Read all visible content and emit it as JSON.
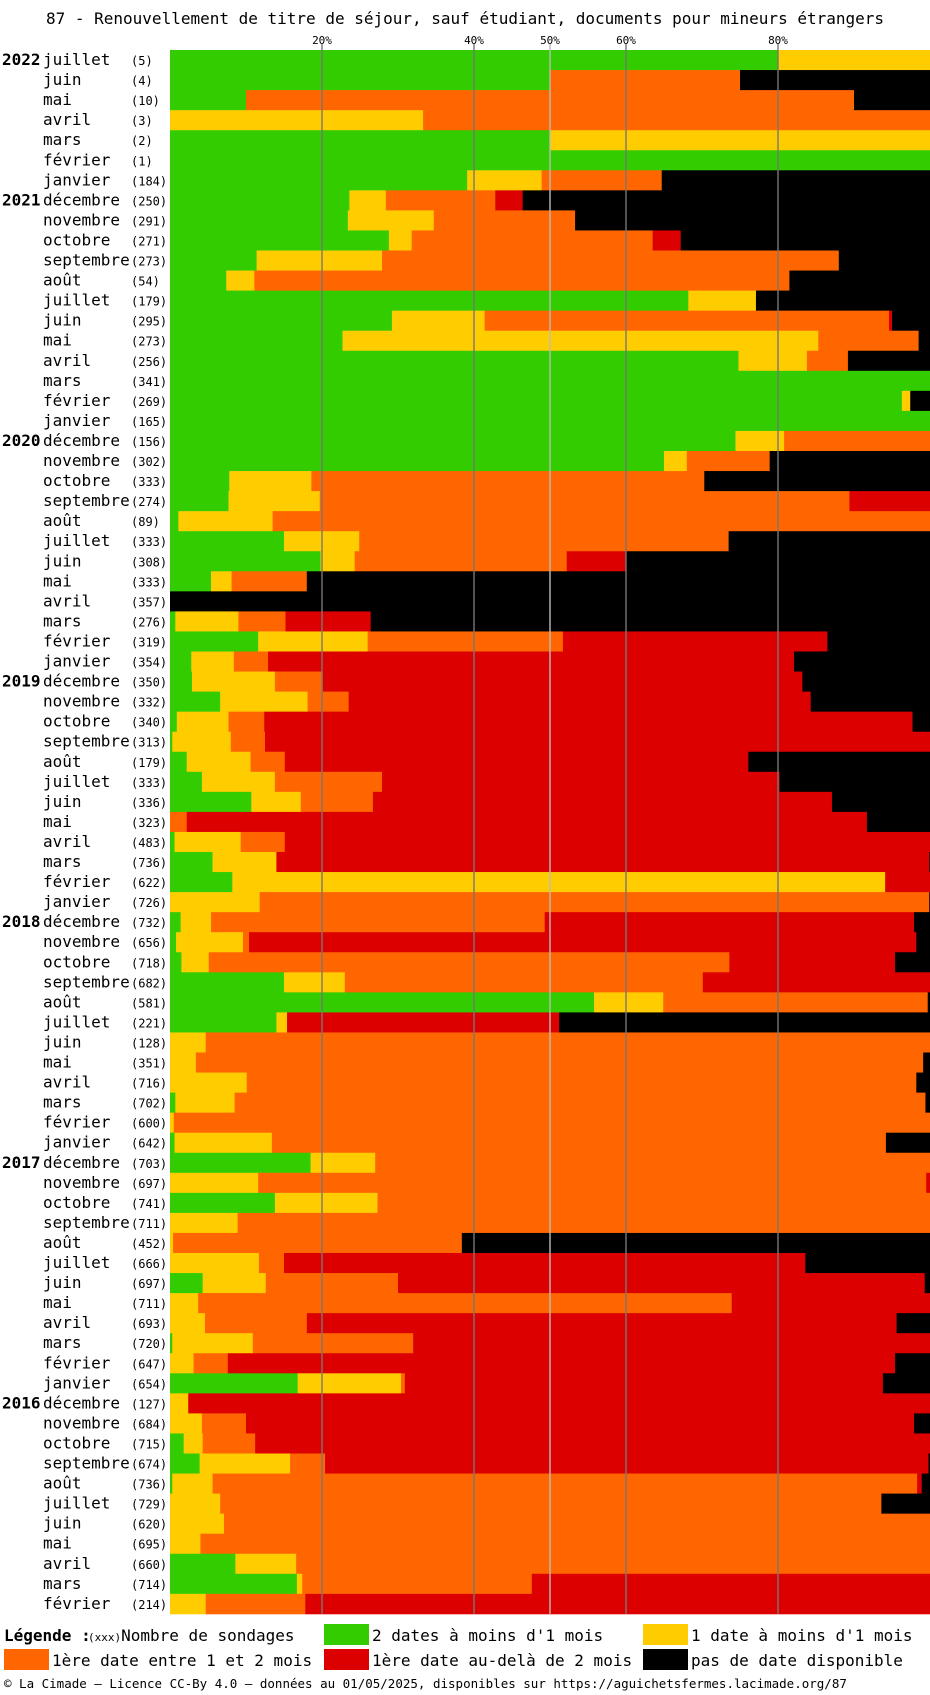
{
  "title": "87 - Renouvellement de titre de séjour, sauf étudiant, documents pour mineurs étrangers",
  "footer": "© La Cimade — Licence CC-By 4.0 — données au 01/05/2025, disponibles sur https://aguichetsfermes.lacimade.org/87",
  "legend": {
    "title": "Légende :",
    "count_marker": "(xxx)",
    "count_label": "Nombre de sondages",
    "items": [
      {
        "key": "g",
        "label": "2 dates à moins d'1 mois",
        "color": "#33cc00"
      },
      {
        "key": "y",
        "label": "1 date à moins d'1 mois",
        "color": "#ffcc00"
      },
      {
        "key": "o",
        "label": "1ère date entre 1 et 2 mois",
        "color": "#ff6600"
      },
      {
        "key": "r",
        "label": "1ère date au-delà de 2 mois",
        "color": "#dd0000"
      },
      {
        "key": "k",
        "label": "pas de date disponible",
        "color": "#000000"
      }
    ]
  },
  "chart_data": {
    "type": "bar",
    "orientation": "horizontal",
    "stacked": true,
    "unit": "percent of surveys per month",
    "xlim": [
      0,
      100
    ],
    "x_ticks": [
      20,
      40,
      50,
      60,
      80
    ],
    "x_tick_labels": [
      "20%",
      "40%",
      "50%",
      "60%",
      "80%"
    ],
    "series_order": [
      "g",
      "y",
      "o",
      "r",
      "k"
    ],
    "rows": [
      {
        "year": "2022",
        "month": "juillet",
        "count": "(5)",
        "v": [
          80,
          20,
          0,
          0,
          0
        ]
      },
      {
        "year": "",
        "month": "juin",
        "count": "(4)",
        "v": [
          50,
          0,
          25,
          0,
          25
        ]
      },
      {
        "year": "",
        "month": "mai",
        "count": "(10)",
        "v": [
          10,
          0,
          80,
          0,
          10
        ]
      },
      {
        "year": "",
        "month": "avril",
        "count": "(3)",
        "v": [
          0,
          33.3,
          66.7,
          0,
          0
        ]
      },
      {
        "year": "",
        "month": "mars",
        "count": "(2)",
        "v": [
          50,
          50,
          0,
          0,
          0
        ]
      },
      {
        "year": "",
        "month": "février",
        "count": "(1)",
        "v": [
          100,
          0,
          0,
          0,
          0
        ]
      },
      {
        "year": "",
        "month": "janvier",
        "count": "(184)",
        "v": [
          39.1,
          9.8,
          15.8,
          0,
          35.3
        ]
      },
      {
        "year": "2021",
        "month": "décembre",
        "count": "(250)",
        "v": [
          23.6,
          4.8,
          14.4,
          3.6,
          53.6
        ]
      },
      {
        "year": "",
        "month": "novembre",
        "count": "(291)",
        "v": [
          23.4,
          11.3,
          18.6,
          0,
          46.7
        ]
      },
      {
        "year": "",
        "month": "octobre",
        "count": "(271)",
        "v": [
          28.8,
          3.0,
          31.7,
          3.7,
          32.8
        ]
      },
      {
        "year": "",
        "month": "septembre",
        "count": "(273)",
        "v": [
          11.4,
          16.5,
          60.1,
          0,
          12.0
        ]
      },
      {
        "year": "",
        "month": "août",
        "count": "(54)",
        "v": [
          7.4,
          3.7,
          70.4,
          0,
          18.5
        ]
      },
      {
        "year": "",
        "month": "juillet",
        "count": "(179)",
        "v": [
          68.2,
          8.9,
          0,
          0,
          22.9
        ]
      },
      {
        "year": "",
        "month": "juin",
        "count": "(295)",
        "v": [
          29.2,
          12.2,
          53.2,
          0.4,
          5.0
        ]
      },
      {
        "year": "",
        "month": "mai",
        "count": "(273)",
        "v": [
          22.7,
          62.6,
          13.2,
          0,
          1.5
        ]
      },
      {
        "year": "",
        "month": "avril",
        "count": "(256)",
        "v": [
          74.8,
          9.0,
          5.4,
          0,
          10.8
        ]
      },
      {
        "year": "",
        "month": "mars",
        "count": "(341)",
        "v": [
          100,
          0,
          0,
          0,
          0
        ]
      },
      {
        "year": "",
        "month": "février",
        "count": "(269)",
        "v": [
          96.3,
          1.1,
          0,
          0,
          2.6
        ]
      },
      {
        "year": "",
        "month": "janvier",
        "count": "(165)",
        "v": [
          100,
          0,
          0,
          0,
          0
        ]
      },
      {
        "year": "2020",
        "month": "décembre",
        "count": "(156)",
        "v": [
          74.4,
          6.4,
          19.2,
          0,
          0
        ]
      },
      {
        "year": "",
        "month": "novembre",
        "count": "(302)",
        "v": [
          65.0,
          3.0,
          10.9,
          0,
          21.1
        ]
      },
      {
        "year": "",
        "month": "octobre",
        "count": "(333)",
        "v": [
          7.8,
          10.8,
          51.7,
          0,
          29.7
        ]
      },
      {
        "year": "",
        "month": "septembre",
        "count": "(274)",
        "v": [
          7.7,
          12.0,
          69.7,
          10.6,
          0
        ]
      },
      {
        "year": "",
        "month": "août",
        "count": "(89)",
        "v": [
          1.1,
          12.4,
          86.5,
          0,
          0
        ]
      },
      {
        "year": "",
        "month": "juillet",
        "count": "(333)",
        "v": [
          15.0,
          9.9,
          48.6,
          0,
          26.5
        ]
      },
      {
        "year": "",
        "month": "juin",
        "count": "(308)",
        "v": [
          19.8,
          4.5,
          27.9,
          7.8,
          40.0
        ]
      },
      {
        "year": "",
        "month": "mai",
        "count": "(333)",
        "v": [
          5.4,
          2.7,
          9.9,
          0,
          82.0
        ]
      },
      {
        "year": "",
        "month": "avril",
        "count": "(357)",
        "v": [
          0,
          0,
          0,
          0,
          100
        ]
      },
      {
        "year": "",
        "month": "mars",
        "count": "(276)",
        "v": [
          0.7,
          8.3,
          6.2,
          11.2,
          73.6
        ]
      },
      {
        "year": "",
        "month": "février",
        "count": "(319)",
        "v": [
          11.6,
          14.4,
          25.7,
          34.8,
          13.5
        ]
      },
      {
        "year": "",
        "month": "janvier",
        "count": "(354)",
        "v": [
          2.8,
          5.6,
          4.5,
          69.2,
          17.9
        ]
      },
      {
        "year": "2019",
        "month": "décembre",
        "count": "(350)",
        "v": [
          2.9,
          10.9,
          6.3,
          63.1,
          16.8
        ]
      },
      {
        "year": "",
        "month": "novembre",
        "count": "(332)",
        "v": [
          6.6,
          11.5,
          5.4,
          60.8,
          15.7
        ]
      },
      {
        "year": "",
        "month": "octobre",
        "count": "(340)",
        "v": [
          0.9,
          6.8,
          4.7,
          85.3,
          2.3
        ]
      },
      {
        "year": "",
        "month": "septembre",
        "count": "(313)",
        "v": [
          0.3,
          7.7,
          4.5,
          87.5,
          0
        ]
      },
      {
        "year": "",
        "month": "août",
        "count": "(179)",
        "v": [
          2.2,
          8.4,
          4.5,
          61.0,
          23.9
        ]
      },
      {
        "year": "",
        "month": "juillet",
        "count": "(333)",
        "v": [
          4.2,
          9.6,
          14.1,
          52.3,
          19.8
        ]
      },
      {
        "year": "",
        "month": "juin",
        "count": "(336)",
        "v": [
          10.7,
          6.5,
          9.5,
          60.4,
          12.9
        ]
      },
      {
        "year": "",
        "month": "mai",
        "count": "(323)",
        "v": [
          0,
          0,
          2.2,
          89.5,
          8.3
        ]
      },
      {
        "year": "",
        "month": "avril",
        "count": "(483)",
        "v": [
          0.6,
          8.7,
          5.8,
          84.9,
          0
        ]
      },
      {
        "year": "",
        "month": "mars",
        "count": "(736)",
        "v": [
          5.6,
          8.4,
          0,
          85.9,
          0.1
        ]
      },
      {
        "year": "",
        "month": "février",
        "count": "(622)",
        "v": [
          8.2,
          85.9,
          0,
          5.9,
          0
        ]
      },
      {
        "year": "",
        "month": "janvier",
        "count": "(726)",
        "v": [
          0,
          11.8,
          88.1,
          0,
          0.1
        ]
      },
      {
        "year": "2018",
        "month": "décembre",
        "count": "(732)",
        "v": [
          1.4,
          4.0,
          43.9,
          48.6,
          2.1
        ]
      },
      {
        "year": "",
        "month": "novembre",
        "count": "(656)",
        "v": [
          0.8,
          8.8,
          0.8,
          87.8,
          1.8
        ]
      },
      {
        "year": "",
        "month": "octobre",
        "count": "(718)",
        "v": [
          1.5,
          3.6,
          68.5,
          21.8,
          4.6
        ]
      },
      {
        "year": "",
        "month": "septembre",
        "count": "(682)",
        "v": [
          15.0,
          8.0,
          47.1,
          29.9,
          0
        ]
      },
      {
        "year": "",
        "month": "août",
        "count": "(581)",
        "v": [
          55.8,
          9.1,
          34.8,
          0,
          0.3
        ]
      },
      {
        "year": "",
        "month": "juillet",
        "count": "(221)",
        "v": [
          14.0,
          1.4,
          0,
          35.8,
          48.8
        ]
      },
      {
        "year": "",
        "month": "juin",
        "count": "(128)",
        "v": [
          0,
          4.7,
          95.3,
          0,
          0
        ]
      },
      {
        "year": "",
        "month": "mai",
        "count": "(351)",
        "v": [
          0,
          3.4,
          95.7,
          0,
          0.9
        ]
      },
      {
        "year": "",
        "month": "avril",
        "count": "(716)",
        "v": [
          0,
          10.1,
          88.1,
          0,
          1.8
        ]
      },
      {
        "year": "",
        "month": "mars",
        "count": "(702)",
        "v": [
          0.7,
          7.8,
          90.9,
          0,
          0.6
        ]
      },
      {
        "year": "",
        "month": "février",
        "count": "(600)",
        "v": [
          0,
          0.5,
          99.5,
          0,
          0
        ]
      },
      {
        "year": "",
        "month": "janvier",
        "count": "(642)",
        "v": [
          0.6,
          12.8,
          80.8,
          0,
          5.8
        ]
      },
      {
        "year": "2017",
        "month": "décembre",
        "count": "(703)",
        "v": [
          18.5,
          8.5,
          73.0,
          0,
          0
        ]
      },
      {
        "year": "",
        "month": "novembre",
        "count": "(697)",
        "v": [
          0,
          11.6,
          87.9,
          0.5,
          0
        ]
      },
      {
        "year": "",
        "month": "octobre",
        "count": "(741)",
        "v": [
          13.8,
          13.5,
          72.7,
          0,
          0
        ]
      },
      {
        "year": "",
        "month": "septembre",
        "count": "(711)",
        "v": [
          0,
          8.9,
          91.1,
          0,
          0
        ]
      },
      {
        "year": "",
        "month": "août",
        "count": "(452)",
        "v": [
          0,
          0.4,
          38.0,
          0,
          61.6
        ]
      },
      {
        "year": "",
        "month": "juillet",
        "count": "(666)",
        "v": [
          0,
          11.7,
          3.3,
          68.6,
          16.4
        ]
      },
      {
        "year": "",
        "month": "juin",
        "count": "(697)",
        "v": [
          4.3,
          8.3,
          17.4,
          69.3,
          0.7
        ]
      },
      {
        "year": "",
        "month": "mai",
        "count": "(711)",
        "v": [
          0,
          3.7,
          70.2,
          26.1,
          0
        ]
      },
      {
        "year": "",
        "month": "avril",
        "count": "(693)",
        "v": [
          0,
          4.6,
          13.4,
          77.6,
          4.4
        ]
      },
      {
        "year": "",
        "month": "mars",
        "count": "(720)",
        "v": [
          0.3,
          10.6,
          21.1,
          68.0,
          0
        ]
      },
      {
        "year": "",
        "month": "février",
        "count": "(647)",
        "v": [
          0,
          3.1,
          4.5,
          87.8,
          4.6
        ]
      },
      {
        "year": "",
        "month": "janvier",
        "count": "(654)",
        "v": [
          16.8,
          13.6,
          0.5,
          62.9,
          6.2
        ]
      },
      {
        "year": "2016",
        "month": "décembre",
        "count": "(127)",
        "v": [
          0,
          2.4,
          0,
          97.6,
          0
        ]
      },
      {
        "year": "",
        "month": "novembre",
        "count": "(684)",
        "v": [
          0,
          4.2,
          5.8,
          87.9,
          2.1
        ]
      },
      {
        "year": "",
        "month": "octobre",
        "count": "(715)",
        "v": [
          1.8,
          2.5,
          6.9,
          88.8,
          0
        ]
      },
      {
        "year": "",
        "month": "septembre",
        "count": "(674)",
        "v": [
          3.9,
          11.9,
          4.6,
          79.4,
          0.2
        ]
      },
      {
        "year": "",
        "month": "août",
        "count": "(736)",
        "v": [
          0.3,
          5.3,
          92.7,
          0.6,
          1.1
        ]
      },
      {
        "year": "",
        "month": "juillet",
        "count": "(729)",
        "v": [
          0,
          6.6,
          87.0,
          0,
          6.4
        ]
      },
      {
        "year": "",
        "month": "juin",
        "count": "(620)",
        "v": [
          0,
          7.1,
          92.9,
          0,
          0
        ]
      },
      {
        "year": "",
        "month": "mai",
        "count": "(695)",
        "v": [
          0,
          4.0,
          96.0,
          0,
          0
        ]
      },
      {
        "year": "",
        "month": "avril",
        "count": "(660)",
        "v": [
          8.6,
          8.0,
          83.4,
          0,
          0
        ]
      },
      {
        "year": "",
        "month": "mars",
        "count": "(714)",
        "v": [
          16.7,
          0.7,
          30.2,
          52.4,
          0
        ]
      },
      {
        "year": "",
        "month": "février",
        "count": "(214)",
        "v": [
          0,
          4.7,
          13.1,
          82.2,
          0
        ]
      }
    ]
  }
}
